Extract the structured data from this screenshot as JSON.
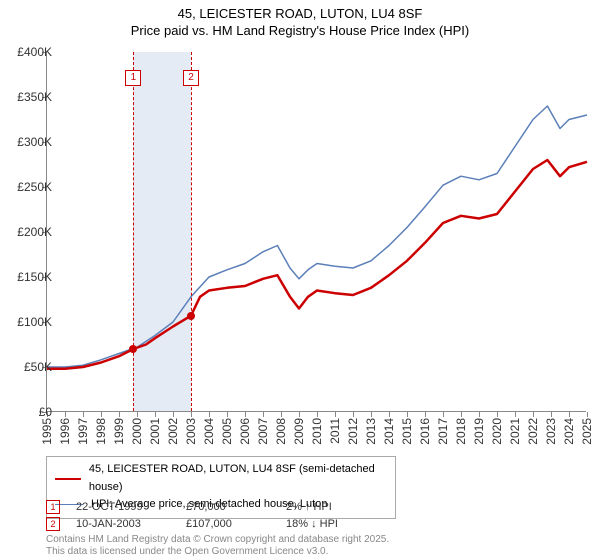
{
  "title": {
    "line1": "45, LEICESTER ROAD, LUTON, LU4 8SF",
    "line2": "Price paid vs. HM Land Registry's House Price Index (HPI)"
  },
  "chart": {
    "type": "line",
    "background_color": "#ffffff",
    "x_years": [
      1995,
      1996,
      1997,
      1998,
      1999,
      2000,
      2001,
      2002,
      2003,
      2004,
      2005,
      2006,
      2007,
      2008,
      2009,
      2010,
      2011,
      2012,
      2013,
      2014,
      2015,
      2016,
      2017,
      2018,
      2019,
      2020,
      2021,
      2022,
      2023,
      2024,
      2025
    ],
    "ylim": [
      0,
      400000
    ],
    "ytick_step": 50000,
    "yticks": [
      "£0",
      "£50K",
      "£100K",
      "£150K",
      "£200K",
      "£250K",
      "£300K",
      "£350K",
      "£400K"
    ],
    "band": {
      "start_year": 1999.8,
      "end_year": 2003.0,
      "color": "#e5ebf5"
    },
    "markers": [
      {
        "id": "1",
        "year": 1999.8,
        "color": "#cc0000"
      },
      {
        "id": "2",
        "year": 2003.0,
        "color": "#cc0000"
      }
    ],
    "series": [
      {
        "name": "property",
        "label": "45, LEICESTER ROAD, LUTON, LU4 8SF (semi-detached house)",
        "color": "#cc0000",
        "width": 2.5,
        "points": [
          [
            1995,
            48000
          ],
          [
            1996,
            48000
          ],
          [
            1997,
            50000
          ],
          [
            1998,
            55000
          ],
          [
            1999,
            62000
          ],
          [
            1999.8,
            70000
          ],
          [
            2000.5,
            75000
          ],
          [
            2001,
            82000
          ],
          [
            2002,
            95000
          ],
          [
            2003,
            107000
          ],
          [
            2003.5,
            128000
          ],
          [
            2004,
            135000
          ],
          [
            2005,
            138000
          ],
          [
            2006,
            140000
          ],
          [
            2007,
            148000
          ],
          [
            2007.8,
            152000
          ],
          [
            2008.5,
            128000
          ],
          [
            2009,
            115000
          ],
          [
            2009.5,
            128000
          ],
          [
            2010,
            135000
          ],
          [
            2011,
            132000
          ],
          [
            2012,
            130000
          ],
          [
            2013,
            138000
          ],
          [
            2014,
            152000
          ],
          [
            2015,
            168000
          ],
          [
            2016,
            188000
          ],
          [
            2017,
            210000
          ],
          [
            2018,
            218000
          ],
          [
            2019,
            215000
          ],
          [
            2020,
            220000
          ],
          [
            2021,
            245000
          ],
          [
            2022,
            270000
          ],
          [
            2022.8,
            280000
          ],
          [
            2023.5,
            262000
          ],
          [
            2024,
            272000
          ],
          [
            2025,
            278000
          ]
        ]
      },
      {
        "name": "hpi",
        "label": "HPI: Average price, semi-detached house, Luton",
        "color": "#5b7fb8",
        "width": 1.5,
        "points": [
          [
            1995,
            50000
          ],
          [
            1996,
            50000
          ],
          [
            1997,
            52000
          ],
          [
            1998,
            58000
          ],
          [
            1999,
            65000
          ],
          [
            2000,
            72000
          ],
          [
            2001,
            85000
          ],
          [
            2002,
            100000
          ],
          [
            2003,
            128000
          ],
          [
            2004,
            150000
          ],
          [
            2005,
            158000
          ],
          [
            2006,
            165000
          ],
          [
            2007,
            178000
          ],
          [
            2007.8,
            185000
          ],
          [
            2008.5,
            160000
          ],
          [
            2009,
            148000
          ],
          [
            2009.5,
            158000
          ],
          [
            2010,
            165000
          ],
          [
            2011,
            162000
          ],
          [
            2012,
            160000
          ],
          [
            2013,
            168000
          ],
          [
            2014,
            185000
          ],
          [
            2015,
            205000
          ],
          [
            2016,
            228000
          ],
          [
            2017,
            252000
          ],
          [
            2018,
            262000
          ],
          [
            2019,
            258000
          ],
          [
            2020,
            265000
          ],
          [
            2021,
            295000
          ],
          [
            2022,
            325000
          ],
          [
            2022.8,
            340000
          ],
          [
            2023.5,
            315000
          ],
          [
            2024,
            325000
          ],
          [
            2025,
            330000
          ]
        ]
      }
    ],
    "sales": [
      {
        "year": 1999.8,
        "price": 70000,
        "color": "#cc0000"
      },
      {
        "year": 2003.0,
        "price": 107000,
        "color": "#cc0000"
      }
    ]
  },
  "events": [
    {
      "id": "1",
      "date": "22-OCT-1999",
      "price": "£70,000",
      "hpi": "2% ↑ HPI"
    },
    {
      "id": "2",
      "date": "10-JAN-2003",
      "price": "£107,000",
      "hpi": "18% ↓ HPI"
    }
  ],
  "footer": {
    "line1": "Contains HM Land Registry data © Crown copyright and database right 2025.",
    "line2": "This data is licensed under the Open Government Licence v3.0."
  }
}
